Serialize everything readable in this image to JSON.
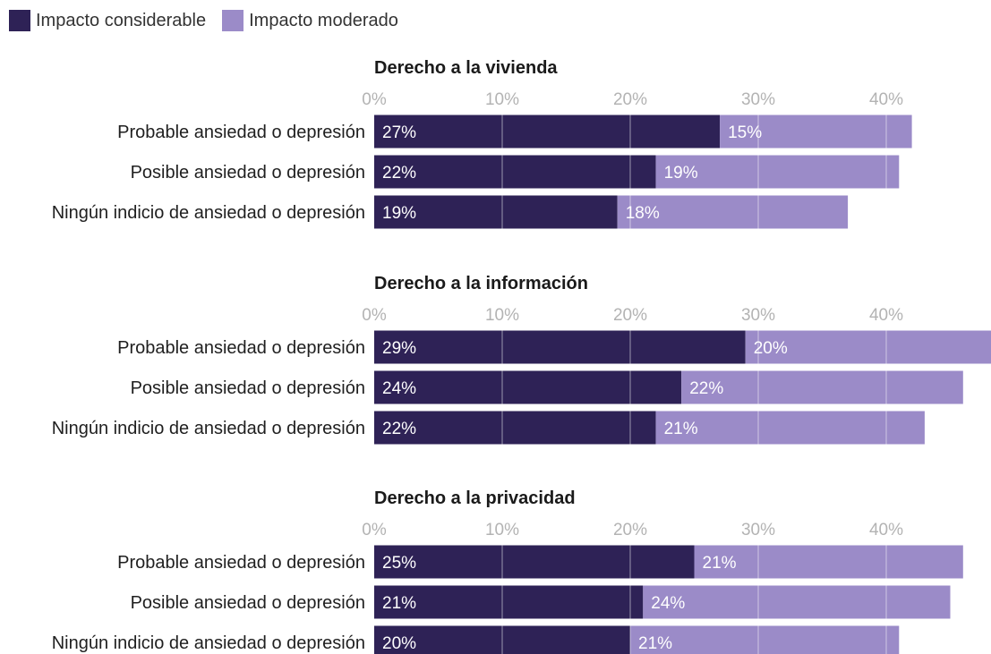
{
  "legend": {
    "items": [
      {
        "label": "Impacto considerable",
        "color": "#2e2256"
      },
      {
        "label": "Impacto moderado",
        "color": "#9b8bc8"
      }
    ]
  },
  "chart_data": {
    "type": "bar",
    "orientation": "horizontal",
    "stacked": true,
    "xlim": [
      0,
      48
    ],
    "ticks": [
      0,
      10,
      20,
      30,
      40
    ],
    "tick_labels": [
      "0%",
      "10%",
      "20%",
      "30%",
      "40%"
    ],
    "grid": true,
    "legend_position": "top-left",
    "colors": {
      "considerable": "#2e2256",
      "moderado": "#9b8bc8"
    },
    "panels": [
      {
        "title": "Derecho a la vivienda",
        "categories": [
          "Probable ansiedad o depresión",
          "Posible ansiedad o depresión",
          "Ningún indicio de ansiedad o depresión"
        ],
        "series": [
          {
            "name": "Impacto considerable",
            "values": [
              27,
              22,
              19
            ],
            "labels": [
              "27%",
              "22%",
              "19%"
            ]
          },
          {
            "name": "Impacto moderado",
            "values": [
              15,
              19,
              18
            ],
            "labels": [
              "15%",
              "19%",
              "18%"
            ]
          }
        ]
      },
      {
        "title": "Derecho a la información",
        "categories": [
          "Probable ansiedad o depresión",
          "Posible ansiedad o depresión",
          "Ningún indicio de ansiedad o depresión"
        ],
        "series": [
          {
            "name": "Impacto considerable",
            "values": [
              29,
              24,
              22
            ],
            "labels": [
              "29%",
              "24%",
              "22%"
            ]
          },
          {
            "name": "Impacto moderado",
            "values": [
              20,
              22,
              21
            ],
            "labels": [
              "20%",
              "22%",
              "21%"
            ]
          }
        ]
      },
      {
        "title": "Derecho a la privacidad",
        "categories": [
          "Probable ansiedad o depresión",
          "Posible ansiedad o depresión",
          "Ningún indicio de ansiedad o depresión"
        ],
        "series": [
          {
            "name": "Impacto considerable",
            "values": [
              25,
              21,
              20
            ],
            "labels": [
              "25%",
              "21%",
              "20%"
            ]
          },
          {
            "name": "Impacto moderado",
            "values": [
              21,
              24,
              21
            ],
            "labels": [
              "21%",
              "24%",
              "21%"
            ]
          }
        ]
      }
    ]
  }
}
